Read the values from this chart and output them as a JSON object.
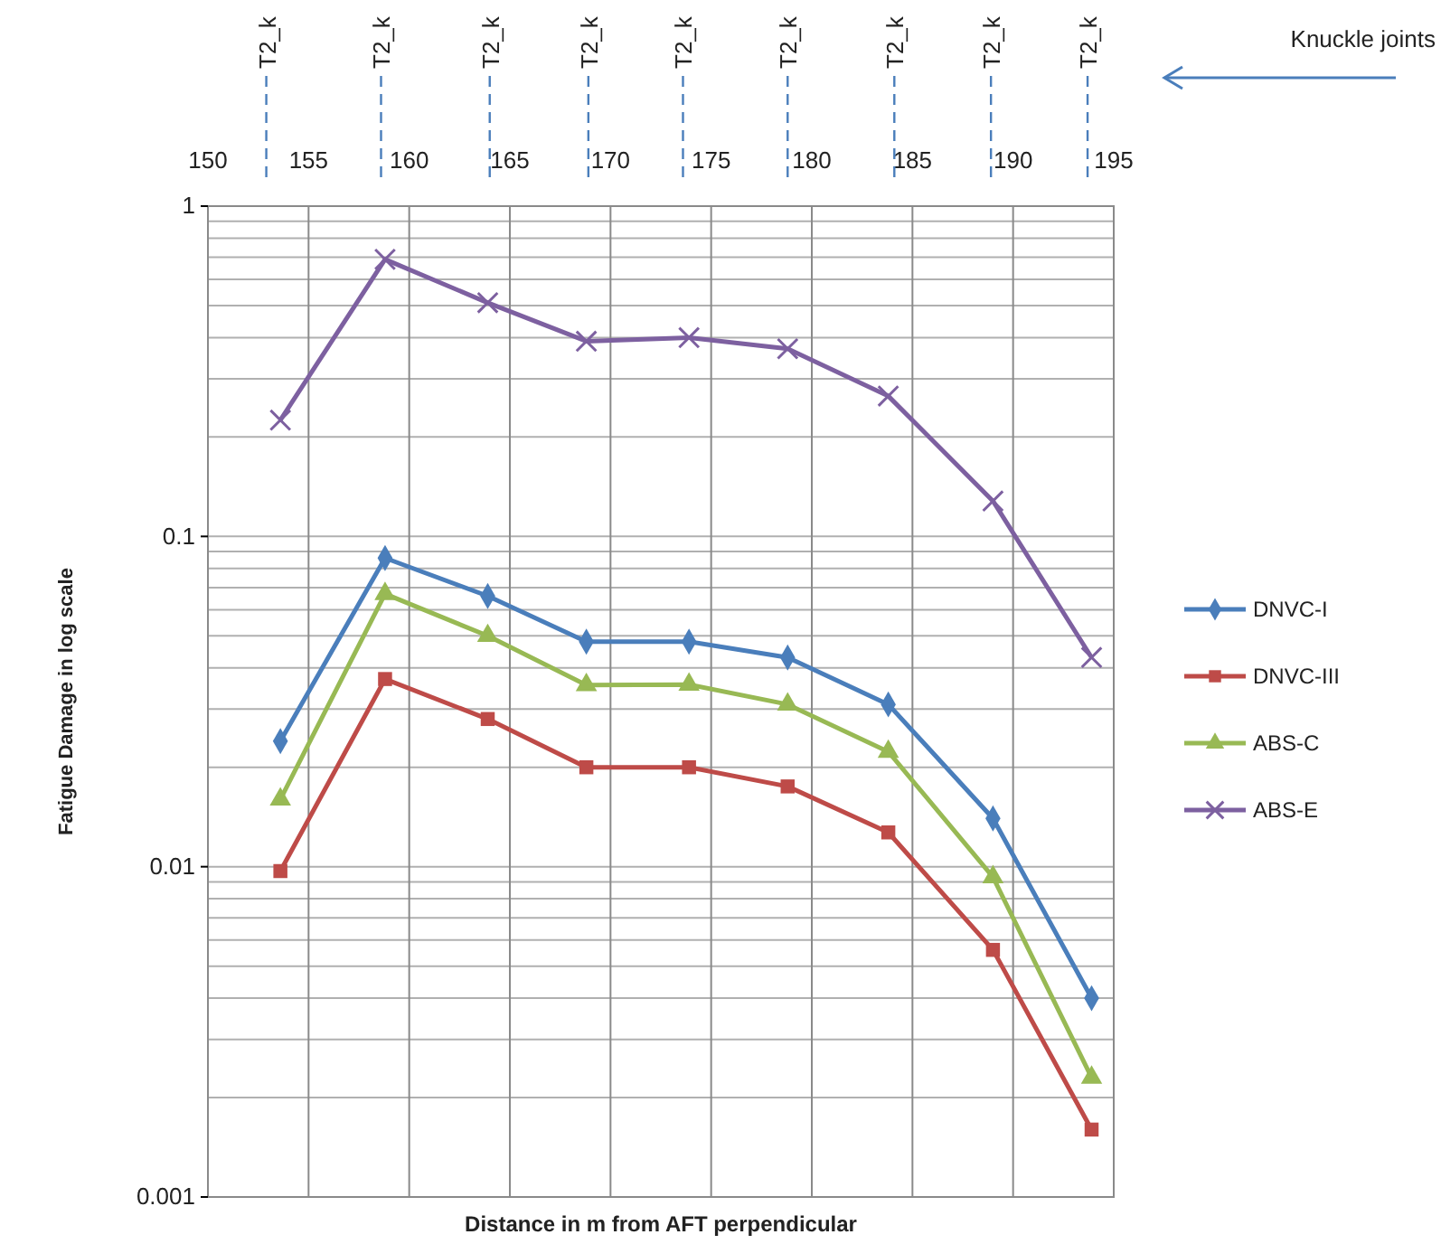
{
  "chart_data": {
    "type": "line",
    "xlabel": "Distance in m from AFT perpendicular",
    "ylabel": "Fatigue Damage in  log scale",
    "x": [
      153.6,
      158.8,
      163.9,
      168.8,
      173.9,
      178.8,
      183.8,
      189,
      193.9
    ],
    "xlim": [
      150,
      195
    ],
    "xticks": [
      150,
      155,
      160,
      165,
      170,
      175,
      180,
      185,
      190,
      195
    ],
    "ylim": [
      0.001,
      1
    ],
    "yticks": [
      {
        "value": 0.001,
        "label": "0.001"
      },
      {
        "value": 0.01,
        "label": "0.01"
      },
      {
        "value": 0.1,
        "label": "0.1"
      },
      {
        "value": 1,
        "label": "1"
      }
    ],
    "log": "y",
    "grid": true,
    "legend": "right",
    "series": [
      {
        "name": "DNVC-I",
        "color": "#4a7ebb",
        "marker": "diamond",
        "values": [
          0.024,
          0.086,
          0.066,
          0.048,
          0.048,
          0.043,
          0.031,
          0.014,
          0.004
        ]
      },
      {
        "name": "DNVC-III",
        "color": "#be4b48",
        "marker": "square",
        "values": [
          0.0097,
          0.037,
          0.028,
          0.02,
          0.02,
          0.0175,
          0.0127,
          0.0056,
          0.0016
        ]
      },
      {
        "name": "ABS-C",
        "color": "#98b954",
        "marker": "triangle",
        "values": [
          0.016,
          0.067,
          0.05,
          0.0355,
          0.0356,
          0.031,
          0.0223,
          0.0093,
          0.0023
        ]
      },
      {
        "name": "ABS-E",
        "color": "#7d60a0",
        "marker": "cross",
        "values": [
          0.225,
          0.69,
          0.51,
          0.39,
          0.4,
          0.37,
          0.266,
          0.128,
          0.043
        ]
      }
    ],
    "ref_lines": [
      {
        "axis": "x",
        "value": 152.9,
        "label": "T2_k",
        "color": "#4a7ebb",
        "line_style": "dashed"
      },
      {
        "axis": "x",
        "value": 158.6,
        "label": "T2_k",
        "color": "#4a7ebb",
        "line_style": "dashed"
      },
      {
        "axis": "x",
        "value": 164,
        "label": "T2_k",
        "color": "#4a7ebb",
        "line_style": "dashed"
      },
      {
        "axis": "x",
        "value": 168.9,
        "label": "T2_k",
        "color": "#4a7ebb",
        "line_style": "dashed"
      },
      {
        "axis": "x",
        "value": 173.6,
        "label": "T2_k",
        "color": "#4a7ebb",
        "line_style": "dashed"
      },
      {
        "axis": "x",
        "value": 178.8,
        "label": "T2_k",
        "color": "#4a7ebb",
        "line_style": "dashed"
      },
      {
        "axis": "x",
        "value": 184.1,
        "label": "T2_k",
        "color": "#4a7ebb",
        "line_style": "dashed"
      },
      {
        "axis": "x",
        "value": 188.9,
        "label": "T2_k",
        "color": "#4a7ebb",
        "line_style": "dashed"
      },
      {
        "axis": "x",
        "value": 193.7,
        "label": "T2_k",
        "color": "#4a7ebb",
        "line_style": "dashed"
      }
    ],
    "annotations": [
      "Knuckle joints"
    ]
  }
}
